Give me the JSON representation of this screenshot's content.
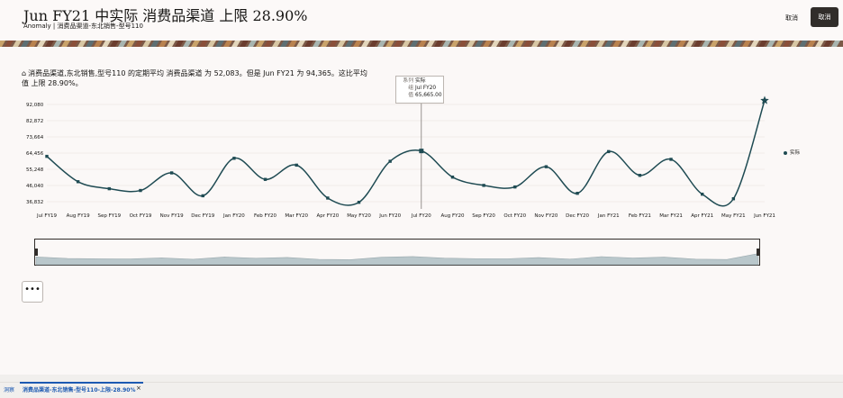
{
  "header": {
    "title": "Jun FY21 中实际 消费品渠道 上限 28.90%",
    "subtitle": "Anomaly | 消费品渠道-东北销售-型号110",
    "cancel_text_label": "取消",
    "cancel_button_label": "取消"
  },
  "summary": {
    "icon": "anomaly-icon",
    "text": "消费品渠道,东北销售,型号110 的定期平均 消费品渠道 为 52,083。但是 Jun FY21 为 94,365。这比平均值 上限 28.90%。"
  },
  "tooltip": {
    "series_key": "系列",
    "series_value": "实际",
    "group_key": "组",
    "group_value": "Jul FY20",
    "value_key": "值",
    "value_value": "65,665.00"
  },
  "legend": {
    "label": "实际"
  },
  "more_button": {
    "label": "•••"
  },
  "footer": {
    "tab_insights": "洞察",
    "tab_active": "消费品渠道-东北销售-型号110-上限-28.90%",
    "close_icon": "×"
  },
  "colors": {
    "series": "#1f4b53",
    "overview_fill": "#b9c7cb",
    "overview_stroke": "#9aa9ae",
    "grid": "#e5e1de",
    "button_dark": "#312d2a",
    "link": "#1d5ab2"
  },
  "chart_data": {
    "type": "line",
    "categories": [
      "Jul FY19",
      "Aug FY19",
      "Sep FY19",
      "Oct FY19",
      "Nov FY19",
      "Dec FY19",
      "Jan FY20",
      "Feb FY20",
      "Mar FY20",
      "Apr FY20",
      "May FY20",
      "Jun FY20",
      "Jul FY20",
      "Aug FY20",
      "Sep FY20",
      "Oct FY20",
      "Nov FY20",
      "Dec FY20",
      "Jan FY21",
      "Feb FY21",
      "Mar FY21",
      "Apr FY21",
      "May FY21",
      "Jun FY21"
    ],
    "series": [
      {
        "name": "实际",
        "values": [
          62600,
          48200,
          44200,
          43200,
          53200,
          40200,
          61500,
          49500,
          57600,
          38900,
          36500,
          59800,
          65665,
          50800,
          46100,
          45200,
          56700,
          41600,
          65300,
          51800,
          60900,
          41100,
          38500,
          94365
        ]
      }
    ],
    "yticks": [
      "92,080",
      "82,872",
      "73,664",
      "64,456",
      "55,248",
      "46,040",
      "36,832"
    ],
    "ytick_values": [
      92080,
      82872,
      73664,
      64456,
      55248,
      46040,
      36832
    ],
    "ylim": [
      36832,
      92080
    ],
    "highlight_category": "Jul FY20",
    "grid": true,
    "legend_position": "right"
  }
}
